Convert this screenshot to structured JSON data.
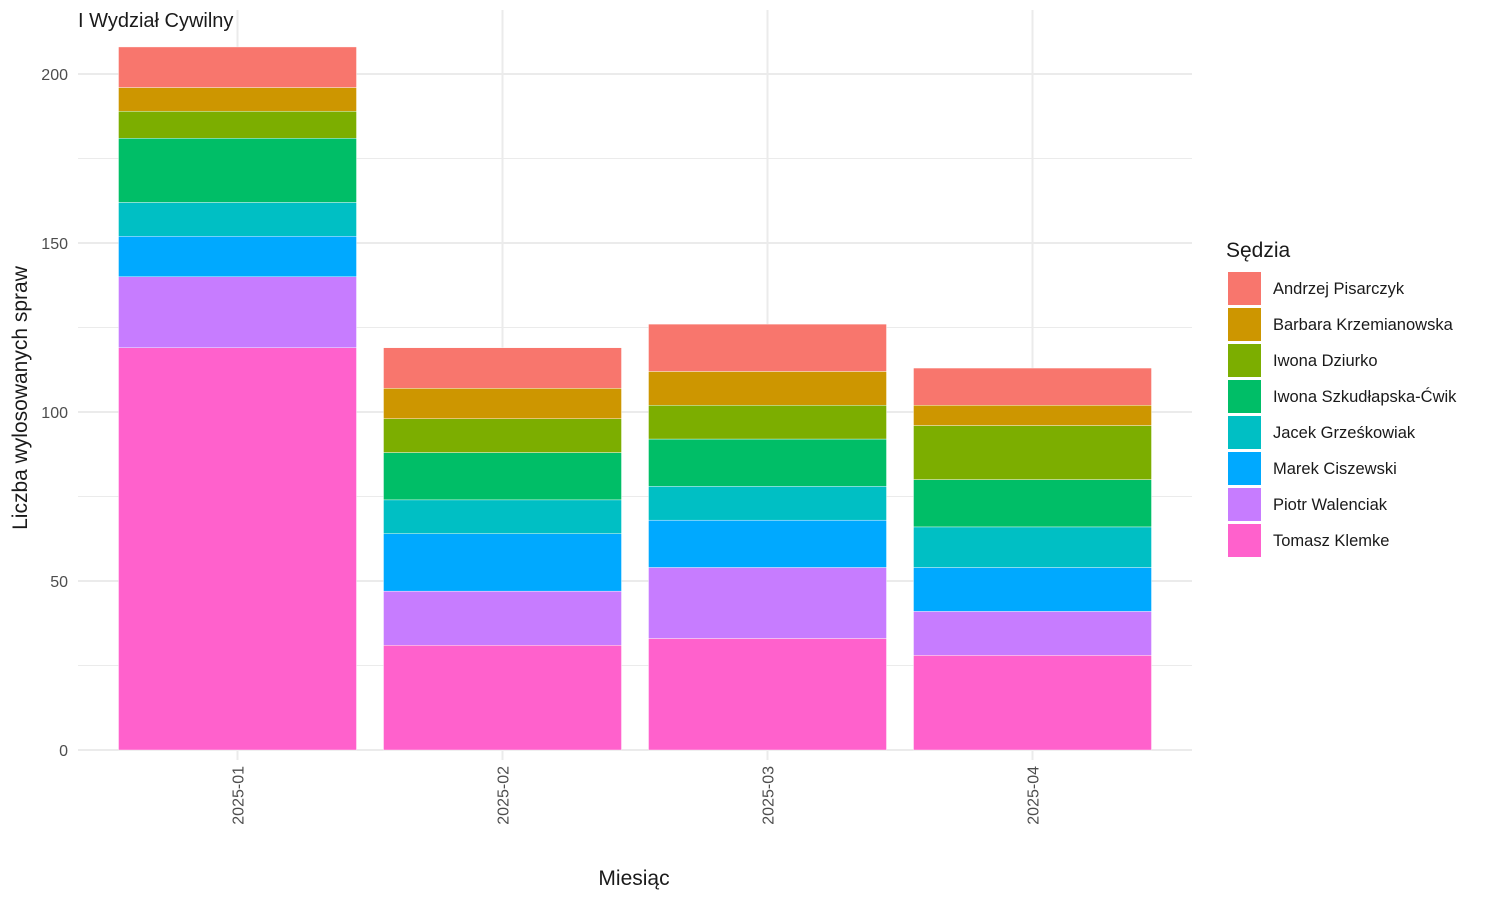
{
  "chart_data": {
    "type": "bar",
    "stacked": true,
    "title": "I Wydział Cywilny",
    "xlabel": "Miesiąc",
    "ylabel": "Liczba wylosowanych spraw",
    "categories": [
      "2025-01",
      "2025-02",
      "2025-03",
      "2025-04"
    ],
    "ylim": [
      0,
      210
    ],
    "yticks": [
      0,
      50,
      100,
      150,
      200
    ],
    "grid": true,
    "legend": {
      "title": "Sędzia",
      "placement": "right"
    },
    "series": [
      {
        "name": "Tomasz Klemke",
        "color": "#FF61CC",
        "values": [
          119,
          31,
          33,
          28
        ]
      },
      {
        "name": "Piotr Walenciak",
        "color": "#C77CFF",
        "values": [
          21,
          16,
          21,
          13
        ]
      },
      {
        "name": "Marek Ciszewski",
        "color": "#00A9FF",
        "values": [
          12,
          17,
          14,
          13
        ]
      },
      {
        "name": "Jacek Grześkowiak",
        "color": "#00BFC4",
        "values": [
          10,
          10,
          10,
          12
        ]
      },
      {
        "name": "Iwona Szkudłapska-Ćwik",
        "color": "#00BE67",
        "values": [
          19,
          14,
          14,
          14
        ]
      },
      {
        "name": "Iwona Dziurko",
        "color": "#7CAE00",
        "values": [
          8,
          10,
          10,
          16
        ]
      },
      {
        "name": "Barbara Krzemianowska",
        "color": "#CD9600",
        "values": [
          7,
          9,
          10,
          6
        ]
      },
      {
        "name": "Andrzej Pisarczyk",
        "color": "#F8766D",
        "values": [
          12,
          12,
          14,
          11
        ]
      }
    ]
  }
}
